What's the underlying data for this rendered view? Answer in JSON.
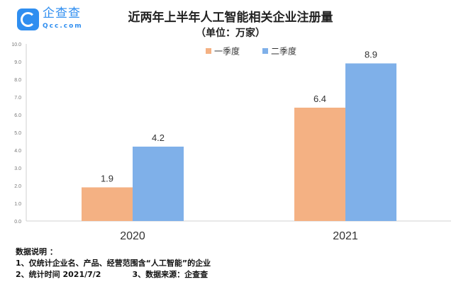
{
  "logo": {
    "name": "企查查",
    "sub": "Qcc.com"
  },
  "chart_data": {
    "type": "bar",
    "title": "近两年上半年人工智能相关企业注册量",
    "subtitle": "（单位：万家）",
    "categories": [
      "2020",
      "2021"
    ],
    "series": [
      {
        "name": "一季度",
        "color": "#f4b183",
        "values": [
          1.9,
          6.4
        ]
      },
      {
        "name": "二季度",
        "color": "#7fb0e9",
        "values": [
          4.2,
          8.9
        ]
      }
    ],
    "ylim": [
      0,
      10
    ],
    "yticks": [
      "0.0",
      "1.0",
      "2.0",
      "3.0",
      "4.0",
      "5.0",
      "6.0",
      "7.0",
      "8.0",
      "9.0",
      "10.0"
    ],
    "data_labels": [
      [
        "1.9",
        "6.4"
      ],
      [
        "4.2",
        "8.9"
      ]
    ],
    "legend": "top-right",
    "grid": false
  },
  "notes": {
    "heading": "数据说明 ：",
    "line1": "1、仅统计企业名、产品、经营范围含“人工智能”的企业",
    "line2a": "2、统计时间 2021/7/2",
    "line2b": "3、数据来源：企查查"
  }
}
